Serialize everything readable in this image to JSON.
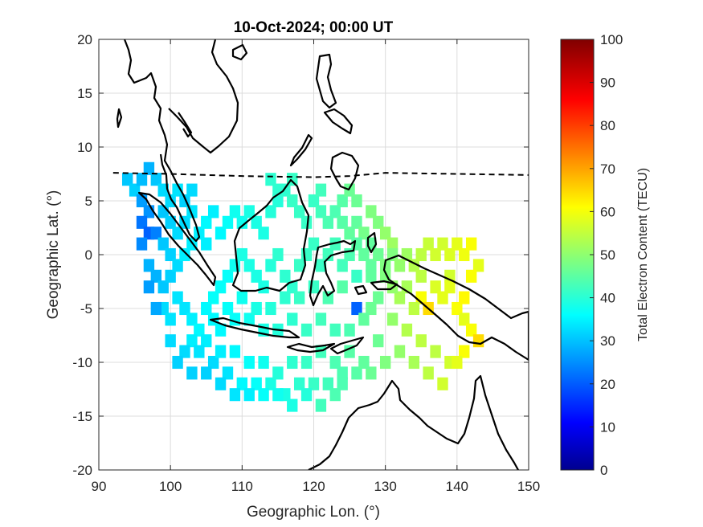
{
  "chart_data": {
    "type": "heatmap",
    "title": "10-Oct-2024; 00:00 UT",
    "xlabel": "Geographic Lon. (°)",
    "ylabel": "Geographic Lat. (°)",
    "xlim": [
      90,
      150
    ],
    "ylim": [
      -20,
      20
    ],
    "xticks": [
      90,
      100,
      110,
      120,
      130,
      140,
      150
    ],
    "yticks": [
      -20,
      -15,
      -10,
      -5,
      0,
      5,
      10,
      15,
      20
    ],
    "grid": true,
    "colormap": "jet",
    "colorbar": {
      "label": "Total Electron Content (TECU)",
      "range": [
        0,
        100
      ],
      "ticks": [
        0,
        10,
        20,
        30,
        40,
        50,
        60,
        70,
        80,
        90,
        100
      ]
    },
    "magnetic_equator": {
      "style": "dashed",
      "lon": [
        92,
        100,
        110,
        120,
        125,
        130,
        140,
        150
      ],
      "lat": [
        7.6,
        7.5,
        7.3,
        7.2,
        7.3,
        7.6,
        7.5,
        7.4
      ]
    },
    "tec_cells": [
      [
        94,
        7,
        32
      ],
      [
        95,
        6,
        33
      ],
      [
        96,
        7,
        31
      ],
      [
        97,
        8,
        30
      ],
      [
        98,
        7,
        32
      ],
      [
        99,
        6,
        34
      ],
      [
        96,
        5,
        28
      ],
      [
        97,
        4,
        27
      ],
      [
        96,
        3,
        24
      ],
      [
        97,
        2,
        22
      ],
      [
        96,
        1,
        26
      ],
      [
        98,
        2,
        25
      ],
      [
        99,
        4,
        32
      ],
      [
        100,
        5,
        34
      ],
      [
        101,
        6,
        35
      ],
      [
        102,
        5,
        33
      ],
      [
        103,
        6,
        34
      ],
      [
        100,
        3,
        33
      ],
      [
        99,
        1,
        32
      ],
      [
        100,
        0,
        33
      ],
      [
        101,
        2,
        34
      ],
      [
        102,
        3,
        34
      ],
      [
        103,
        4,
        35
      ],
      [
        97,
        -1,
        30
      ],
      [
        98,
        -2,
        30
      ],
      [
        99,
        -3,
        32
      ],
      [
        100,
        -2,
        33
      ],
      [
        101,
        -1,
        34
      ],
      [
        102,
        0,
        36
      ],
      [
        103,
        1,
        36
      ],
      [
        104,
        2,
        36
      ],
      [
        105,
        3,
        37
      ],
      [
        106,
        4,
        36
      ],
      [
        105,
        1,
        36
      ],
      [
        107,
        2,
        37
      ],
      [
        108,
        3,
        38
      ],
      [
        109,
        4,
        39
      ],
      [
        110,
        3,
        39
      ],
      [
        111,
        4,
        40
      ],
      [
        112,
        3,
        40
      ],
      [
        113,
        2,
        40
      ],
      [
        114,
        4,
        41
      ],
      [
        115,
        5,
        41
      ],
      [
        116,
        6,
        42
      ],
      [
        117,
        5,
        43
      ],
      [
        118,
        4,
        43
      ],
      [
        119,
        3,
        43
      ],
      [
        120,
        5,
        43
      ],
      [
        121,
        4,
        44
      ],
      [
        122,
        3,
        45
      ],
      [
        123,
        4,
        45
      ],
      [
        124,
        3,
        46
      ],
      [
        125,
        2,
        47
      ],
      [
        126,
        3,
        47
      ],
      [
        127,
        2,
        49
      ],
      [
        128,
        1,
        47
      ],
      [
        114,
        7,
        42
      ],
      [
        115,
        6,
        42
      ],
      [
        117,
        7,
        43
      ],
      [
        121,
        6,
        44
      ],
      [
        124,
        5,
        46
      ],
      [
        125,
        6,
        48
      ],
      [
        126,
        5,
        48
      ],
      [
        128,
        4,
        50
      ],
      [
        129,
        3,
        50
      ],
      [
        130,
        2,
        52
      ],
      [
        131,
        1,
        53
      ],
      [
        99,
        -5,
        34
      ],
      [
        100,
        -6,
        35
      ],
      [
        101,
        -4,
        35
      ],
      [
        102,
        -5,
        35
      ],
      [
        103,
        -6,
        36
      ],
      [
        104,
        -7,
        37
      ],
      [
        105,
        -5,
        37
      ],
      [
        106,
        -4,
        38
      ],
      [
        107,
        -3,
        38
      ],
      [
        108,
        -2,
        38
      ],
      [
        109,
        -1,
        39
      ],
      [
        110,
        0,
        40
      ],
      [
        111,
        -1,
        40
      ],
      [
        112,
        -2,
        40
      ],
      [
        113,
        -3,
        40
      ],
      [
        114,
        -1,
        41
      ],
      [
        115,
        0,
        42
      ],
      [
        116,
        -2,
        42
      ],
      [
        117,
        -3,
        42
      ],
      [
        118,
        -1,
        43
      ],
      [
        119,
        0,
        43
      ],
      [
        120,
        1,
        43
      ],
      [
        121,
        -1,
        43
      ],
      [
        122,
        0,
        44
      ],
      [
        123,
        1,
        44
      ],
      [
        124,
        -1,
        44
      ],
      [
        125,
        0,
        45
      ],
      [
        126,
        1,
        46
      ],
      [
        127,
        0,
        47
      ],
      [
        128,
        -1,
        47
      ],
      [
        129,
        0,
        48
      ],
      [
        130,
        -1,
        50
      ],
      [
        131,
        0,
        50
      ],
      [
        132,
        -1,
        52
      ],
      [
        133,
        0,
        53
      ],
      [
        134,
        -1,
        55
      ],
      [
        135,
        0,
        56
      ],
      [
        136,
        1,
        57
      ],
      [
        137,
        0,
        58
      ],
      [
        138,
        1,
        58
      ],
      [
        139,
        0,
        59
      ],
      [
        140,
        1,
        60
      ],
      [
        141,
        0,
        61
      ],
      [
        142,
        1,
        62
      ],
      [
        143,
        -1,
        60
      ],
      [
        142,
        -2,
        62
      ],
      [
        139,
        -2,
        58
      ],
      [
        137,
        -3,
        59
      ],
      [
        135,
        -4,
        62
      ],
      [
        136,
        -5,
        66
      ],
      [
        138,
        -4,
        60
      ],
      [
        140,
        -5,
        62
      ],
      [
        141,
        -6,
        60
      ],
      [
        142,
        -7,
        62
      ],
      [
        143,
        -8,
        66
      ],
      [
        141,
        -9,
        62
      ],
      [
        139,
        -10,
        58
      ],
      [
        137,
        -9,
        56
      ],
      [
        135,
        -8,
        56
      ],
      [
        133,
        -7,
        55
      ],
      [
        134,
        -5,
        56
      ],
      [
        132,
        -4,
        54
      ],
      [
        131,
        -3,
        52
      ],
      [
        130,
        -2,
        50
      ],
      [
        129,
        -4,
        48
      ],
      [
        128,
        -5,
        48
      ],
      [
        126,
        -5,
        22
      ],
      [
        127,
        -6,
        47
      ],
      [
        125,
        -7,
        45
      ],
      [
        123,
        -7,
        44
      ],
      [
        121,
        -6,
        44
      ],
      [
        119,
        -7,
        43
      ],
      [
        117,
        -6,
        42
      ],
      [
        115,
        -7,
        41
      ],
      [
        113,
        -7,
        40
      ],
      [
        111,
        -6,
        39
      ],
      [
        109,
        -6,
        38
      ],
      [
        107,
        -7,
        37
      ],
      [
        105,
        -8,
        36
      ],
      [
        103,
        -8,
        36
      ],
      [
        104,
        -9,
        35
      ],
      [
        106,
        -10,
        34
      ],
      [
        108,
        -11,
        35
      ],
      [
        110,
        -12,
        37
      ],
      [
        112,
        -12,
        38
      ],
      [
        114,
        -12,
        40
      ],
      [
        116,
        -13,
        40
      ],
      [
        118,
        -12,
        42
      ],
      [
        120,
        -12,
        43
      ],
      [
        122,
        -12,
        44
      ],
      [
        124,
        -11,
        45
      ],
      [
        126,
        -11,
        46
      ],
      [
        128,
        -11,
        48
      ],
      [
        130,
        -10,
        50
      ],
      [
        132,
        -9,
        52
      ],
      [
        134,
        -10,
        54
      ],
      [
        136,
        -11,
        56
      ],
      [
        138,
        -12,
        58
      ],
      [
        140,
        -10,
        60
      ],
      [
        119,
        -10,
        43
      ],
      [
        117,
        -10,
        42
      ],
      [
        115,
        -11,
        41
      ],
      [
        113,
        -10,
        39
      ],
      [
        111,
        -10,
        38
      ],
      [
        109,
        -9,
        37
      ],
      [
        107,
        -9,
        36
      ],
      [
        121,
        -9,
        44
      ],
      [
        123,
        -10,
        45
      ],
      [
        125,
        -9,
        46
      ],
      [
        127,
        -10,
        47
      ],
      [
        129,
        -8,
        48
      ],
      [
        131,
        -6,
        52
      ],
      [
        133,
        -3,
        54
      ],
      [
        135,
        -2,
        56
      ],
      [
        126,
        -2,
        43
      ],
      [
        128,
        -2,
        47
      ],
      [
        124,
        -3,
        46
      ],
      [
        122,
        -4,
        45
      ],
      [
        120,
        -3,
        43
      ],
      [
        118,
        -4,
        43
      ],
      [
        116,
        -4,
        42
      ],
      [
        114,
        -5,
        41
      ],
      [
        112,
        -5,
        40
      ],
      [
        110,
        -4,
        39
      ],
      [
        108,
        -5,
        38
      ],
      [
        106,
        -6,
        37
      ],
      [
        102,
        -9,
        34
      ],
      [
        100,
        -8,
        34
      ],
      [
        101,
        -10,
        33
      ],
      [
        103,
        -11,
        33
      ],
      [
        105,
        -11,
        33
      ],
      [
        107,
        -12,
        34
      ],
      [
        109,
        -13,
        35
      ],
      [
        111,
        -13,
        36
      ],
      [
        113,
        -13,
        38
      ],
      [
        115,
        -13,
        39
      ],
      [
        117,
        -14,
        40
      ],
      [
        119,
        -13,
        41
      ],
      [
        121,
        -14,
        44
      ],
      [
        123,
        -13,
        45
      ],
      [
        97,
        -3,
        28
      ],
      [
        98,
        -5,
        29
      ],
      [
        124,
        -12,
        45
      ],
      [
        139,
        -3,
        60
      ],
      [
        141,
        -4,
        63
      ]
    ]
  }
}
